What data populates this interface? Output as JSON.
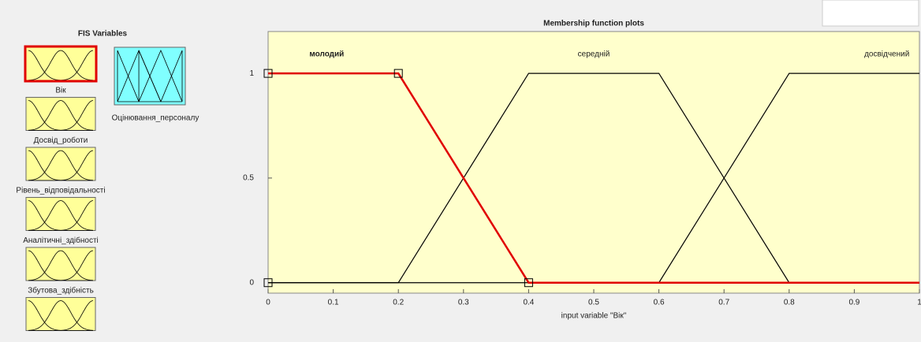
{
  "sidebar": {
    "title": "FIS Variables",
    "inputs": [
      "Вік",
      "Досвід_роботи",
      "Рівень_відповідальності",
      "Аналітичні_здібності",
      "Збутова_здібність"
    ],
    "output": "Оцінювання_персоналу"
  },
  "chart_data": {
    "type": "line",
    "title": "Membership function plots",
    "x_label": "input variable \"Вік\"",
    "xlim": [
      0,
      1
    ],
    "ylim": [
      -0.05,
      1.2
    ],
    "xticks": [
      0,
      0.1,
      0.2,
      0.3,
      0.4,
      0.5,
      0.6,
      0.7,
      0.8,
      0.9,
      1
    ],
    "yticks": [
      0,
      0.5,
      1
    ],
    "series": [
      {
        "name": "молодий",
        "color": "#e00000",
        "x": [
          0,
          0.2,
          0.4,
          1
        ],
        "values": [
          1,
          1,
          0,
          0
        ]
      },
      {
        "name": "середній",
        "color": "#000000",
        "x": [
          0,
          0.2,
          0.4,
          0.6,
          0.8,
          1
        ],
        "values": [
          0,
          0,
          1,
          1,
          0,
          0
        ]
      },
      {
        "name": "досвідчений",
        "color": "#000000",
        "x": [
          0,
          0.6,
          0.8,
          1
        ],
        "values": [
          0,
          0,
          1,
          1
        ]
      }
    ],
    "label_x": [
      0.09,
      0.5,
      0.95
    ]
  }
}
